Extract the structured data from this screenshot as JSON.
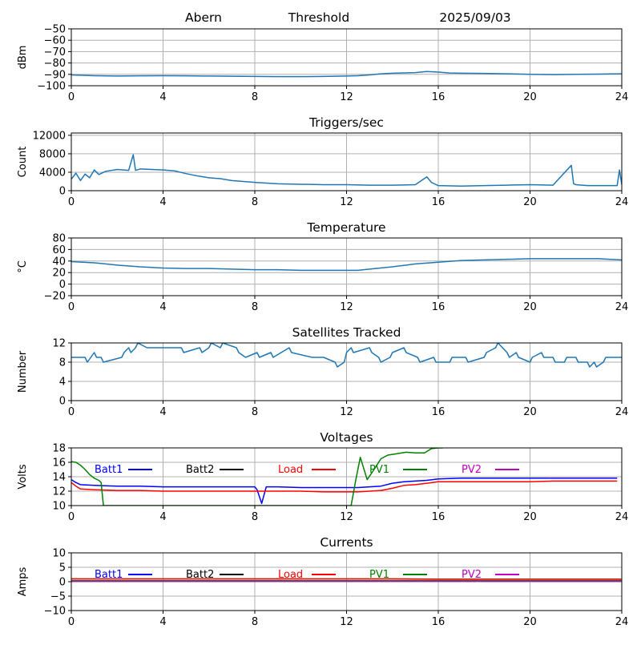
{
  "header": {
    "station": "Abern",
    "threshold_label": "Threshold",
    "date": "2025/09/03"
  },
  "colors": {
    "series_default": "#1f77b4",
    "batt1": "#0000ff",
    "batt2": "#000000",
    "load": "#ff0000",
    "pv1": "#008000",
    "pv2": "#bf00bf",
    "grid": "#b0b0b0"
  },
  "chart_data": [
    {
      "type": "line",
      "title": "",
      "ylabel": "dBm",
      "xlim": [
        0,
        24
      ],
      "ylim": [
        -100,
        -50
      ],
      "xticks": [
        0,
        4,
        8,
        12,
        16,
        20,
        24
      ],
      "yticks": [
        -100,
        -90,
        -80,
        -70,
        -60,
        -50
      ],
      "ytick_labels": [
        "−100",
        "−90",
        "−80",
        "−70",
        "−60",
        "−50"
      ],
      "grid": true,
      "series": [
        {
          "color": "#1f77b4",
          "x": [
            0,
            1,
            2,
            3,
            4,
            5,
            6,
            7,
            8,
            9,
            10,
            11,
            12,
            12.5,
            13,
            13.5,
            14,
            15,
            15.5,
            16,
            16.5,
            17,
            18,
            19,
            20,
            21,
            22,
            23,
            24
          ],
          "y": [
            -90.5,
            -91.2,
            -91.5,
            -91.3,
            -91.2,
            -91.3,
            -91.5,
            -91.6,
            -91.8,
            -92,
            -92,
            -91.8,
            -91.5,
            -91.2,
            -90.5,
            -89.5,
            -89,
            -88.5,
            -87.5,
            -88,
            -88.8,
            -89,
            -89.2,
            -89.5,
            -90,
            -90.2,
            -90,
            -89.8,
            -89.5
          ]
        }
      ]
    },
    {
      "type": "line",
      "title": "Triggers/sec",
      "ylabel": "Count",
      "xlim": [
        0,
        24
      ],
      "ylim": [
        0,
        12500
      ],
      "xticks": [
        0,
        4,
        8,
        12,
        16,
        20,
        24
      ],
      "yticks": [
        0,
        4000,
        8000,
        12000
      ],
      "ytick_labels": [
        "0",
        "4000",
        "8000",
        "12000"
      ],
      "grid": true,
      "series": [
        {
          "color": "#1f77b4",
          "x": [
            0,
            0.2,
            0.4,
            0.6,
            0.8,
            1.0,
            1.2,
            1.5,
            2.0,
            2.5,
            2.7,
            2.8,
            3.0,
            3.5,
            4.0,
            4.5,
            5.0,
            5.5,
            6.0,
            6.5,
            7.0,
            7.5,
            8.0,
            9,
            10,
            11,
            12,
            13,
            14,
            15,
            15.5,
            15.7,
            16,
            17,
            18,
            19,
            20,
            21,
            21.8,
            21.9,
            22,
            22.5,
            23,
            23.8,
            23.9,
            24
          ],
          "y": [
            2500,
            3800,
            2200,
            3600,
            2800,
            4500,
            3500,
            4200,
            4600,
            4400,
            7800,
            4400,
            4700,
            4600,
            4500,
            4300,
            3700,
            3200,
            2800,
            2600,
            2200,
            2000,
            1800,
            1500,
            1400,
            1300,
            1300,
            1200,
            1200,
            1300,
            3000,
            1800,
            1100,
            1000,
            1100,
            1200,
            1300,
            1200,
            5500,
            1500,
            1300,
            1100,
            1100,
            1100,
            4500,
            1300
          ]
        }
      ]
    },
    {
      "type": "line",
      "title": "Temperature",
      "ylabel": "°C",
      "xlim": [
        0,
        24
      ],
      "ylim": [
        -20,
        80
      ],
      "xticks": [
        0,
        4,
        8,
        12,
        16,
        20,
        24
      ],
      "yticks": [
        -20,
        0,
        20,
        40,
        60,
        80
      ],
      "ytick_labels": [
        "−20",
        "0",
        "20",
        "40",
        "60",
        "80"
      ],
      "grid": true,
      "series": [
        {
          "color": "#1f77b4",
          "x": [
            0,
            1,
            2,
            3,
            4,
            5,
            6,
            7,
            8,
            9,
            10,
            11,
            12,
            12.5,
            13,
            14,
            15,
            16,
            17,
            18,
            19,
            20,
            21,
            22,
            23,
            24
          ],
          "y": [
            39,
            37,
            33,
            30,
            28,
            27,
            27,
            26,
            25,
            25,
            24,
            24,
            24,
            24,
            26,
            30,
            35,
            38,
            41,
            42,
            43,
            44,
            44,
            44,
            44,
            42
          ]
        }
      ]
    },
    {
      "type": "line",
      "title": "Satellites Tracked",
      "ylabel": "Number",
      "xlim": [
        0,
        24
      ],
      "ylim": [
        0,
        12
      ],
      "xticks": [
        0,
        4,
        8,
        12,
        16,
        20,
        24
      ],
      "yticks": [
        0,
        4,
        8,
        12
      ],
      "ytick_labels": [
        "0",
        "4",
        "8",
        "12"
      ],
      "grid": true,
      "series": [
        {
          "color": "#1f77b4",
          "x": [
            0,
            0.6,
            0.7,
            1.0,
            1.1,
            1.3,
            1.4,
            2.2,
            2.3,
            2.5,
            2.6,
            2.8,
            2.9,
            3.3,
            3.4,
            4.0,
            4.8,
            4.9,
            5.6,
            5.7,
            6.0,
            6.1,
            6.5,
            6.6,
            7.2,
            7.3,
            7.6,
            8.1,
            8.2,
            8.7,
            8.8,
            9.5,
            9.6,
            10.5,
            11.0,
            11.5,
            11.6,
            11.9,
            12.0,
            12.2,
            12.3,
            13.0,
            13.1,
            13.4,
            13.5,
            13.9,
            14.0,
            14.5,
            14.6,
            15.1,
            15.2,
            15.8,
            15.9,
            16.5,
            16.6,
            17.2,
            17.3,
            18.0,
            18.1,
            18.5,
            18.6,
            19.0,
            19.1,
            19.4,
            19.5,
            20.0,
            20.1,
            20.5,
            20.6,
            21.0,
            21.1,
            21.5,
            21.6,
            22.0,
            22.1,
            22.5,
            22.6,
            22.8,
            22.9,
            23.2,
            23.3,
            24
          ],
          "y": [
            9,
            9,
            8,
            10,
            9,
            9,
            8,
            9,
            10,
            11,
            10,
            11,
            12,
            11,
            11,
            11,
            11,
            10,
            11,
            10,
            11,
            12,
            11,
            12,
            11,
            10,
            9,
            10,
            9,
            10,
            9,
            11,
            10,
            9,
            9,
            8,
            7,
            8,
            10,
            11,
            10,
            11,
            10,
            9,
            8,
            9,
            10,
            11,
            10,
            9,
            8,
            9,
            8,
            8,
            9,
            9,
            8,
            9,
            10,
            11,
            12,
            10,
            9,
            10,
            9,
            8,
            9,
            10,
            9,
            9,
            8,
            8,
            9,
            9,
            8,
            8,
            7,
            8,
            7,
            8,
            9,
            9
          ]
        }
      ]
    },
    {
      "type": "line",
      "title": "Voltages",
      "ylabel": "Volts",
      "xlim": [
        0,
        24
      ],
      "ylim": [
        10,
        18
      ],
      "xticks": [
        0,
        4,
        8,
        12,
        16,
        20,
        24
      ],
      "yticks": [
        10,
        12,
        14,
        16,
        18
      ],
      "ytick_labels": [
        "10",
        "12",
        "14",
        "16",
        "18"
      ],
      "grid": true,
      "legend": "top inside, single row",
      "series": [
        {
          "name": "Batt1",
          "color": "#0000ff",
          "x": [
            0,
            0.2,
            0.4,
            1,
            2,
            3,
            4,
            5,
            6,
            7,
            8,
            8.1,
            8.3,
            8.5,
            9,
            10,
            11,
            12,
            12.5,
            13,
            13.5,
            14,
            14.5,
            15,
            15.5,
            16,
            17,
            18,
            19,
            20,
            21,
            22,
            23,
            23.8
          ],
          "y": [
            13.6,
            13.2,
            12.9,
            12.8,
            12.7,
            12.7,
            12.6,
            12.6,
            12.6,
            12.6,
            12.6,
            12.2,
            10.3,
            12.6,
            12.6,
            12.5,
            12.5,
            12.5,
            12.5,
            12.6,
            12.7,
            13.1,
            13.3,
            13.4,
            13.5,
            13.7,
            13.8,
            13.8,
            13.8,
            13.8,
            13.8,
            13.8,
            13.8,
            13.8
          ]
        },
        {
          "name": "Batt2",
          "color": "#000000",
          "x": [],
          "y": []
        },
        {
          "name": "Load",
          "color": "#ff0000",
          "x": [
            0,
            0.2,
            0.4,
            1,
            2,
            3,
            4,
            5,
            6,
            7,
            8,
            9,
            10,
            11,
            12,
            12.5,
            13,
            13.5,
            14,
            14.5,
            15,
            15.5,
            16,
            17,
            18,
            19,
            20,
            21,
            22,
            23,
            23.8
          ],
          "y": [
            13.2,
            12.7,
            12.3,
            12.2,
            12.1,
            12.1,
            12.0,
            12.0,
            12.0,
            12.0,
            12.0,
            12.0,
            12.0,
            11.9,
            11.9,
            11.9,
            12.0,
            12.1,
            12.4,
            12.8,
            12.9,
            13.1,
            13.3,
            13.3,
            13.3,
            13.3,
            13.3,
            13.4,
            13.4,
            13.4,
            13.4
          ]
        },
        {
          "name": "PV1",
          "color": "#008000",
          "x": [
            0,
            0.2,
            0.4,
            0.6,
            0.8,
            1.0,
            1.2,
            1.3,
            1.4,
            12.2,
            12.4,
            12.6,
            12.9,
            13.2,
            13.5,
            13.8,
            14.2,
            14.6,
            15.0,
            15.4,
            15.7,
            16.0,
            16.2
          ],
          "y": [
            16.1,
            16.0,
            15.6,
            15.0,
            14.3,
            13.8,
            13.5,
            13.2,
            10.0,
            10.0,
            13.5,
            16.7,
            13.6,
            15.0,
            16.5,
            17.0,
            17.2,
            17.4,
            17.3,
            17.3,
            17.9,
            18.0,
            18.0
          ]
        },
        {
          "name": "PV2",
          "color": "#bf00bf",
          "x": [],
          "y": []
        }
      ]
    },
    {
      "type": "line",
      "title": "Currents",
      "ylabel": "Amps",
      "xlim": [
        0,
        24
      ],
      "ylim": [
        -10,
        10
      ],
      "xticks": [
        0,
        4,
        8,
        12,
        16,
        20,
        24
      ],
      "yticks": [
        -10,
        -5,
        0,
        5,
        10
      ],
      "ytick_labels": [
        "−10",
        "−5",
        "0",
        "5",
        "10"
      ],
      "grid": true,
      "legend": "top inside, single row",
      "series": [
        {
          "name": "Batt1",
          "color": "#0000ff",
          "x": [
            0,
            4,
            8,
            12,
            16,
            20,
            24
          ],
          "y": [
            0.2,
            0.2,
            0.2,
            0.2,
            0.2,
            0.2,
            0.2
          ]
        },
        {
          "name": "Batt2",
          "color": "#000000",
          "x": [],
          "y": []
        },
        {
          "name": "Load",
          "color": "#ff0000",
          "x": [
            0,
            2,
            4,
            6,
            8,
            10,
            12,
            14,
            16,
            18,
            20,
            22,
            24
          ],
          "y": [
            1.0,
            1.0,
            1.0,
            1.0,
            1.0,
            1.0,
            1.0,
            1.0,
            0.9,
            0.9,
            0.9,
            0.9,
            0.9
          ]
        },
        {
          "name": "PV1",
          "color": "#008000",
          "x": [
            0,
            4,
            8,
            12,
            16,
            20,
            24
          ],
          "y": [
            0.4,
            0.4,
            0.4,
            0.4,
            0.4,
            0.4,
            0.4
          ]
        },
        {
          "name": "PV2",
          "color": "#bf00bf",
          "x": [
            0,
            4,
            8,
            12,
            16,
            20,
            24
          ],
          "y": [
            0.1,
            0.1,
            0.1,
            0.1,
            0.1,
            0.1,
            0.1
          ]
        }
      ]
    }
  ]
}
